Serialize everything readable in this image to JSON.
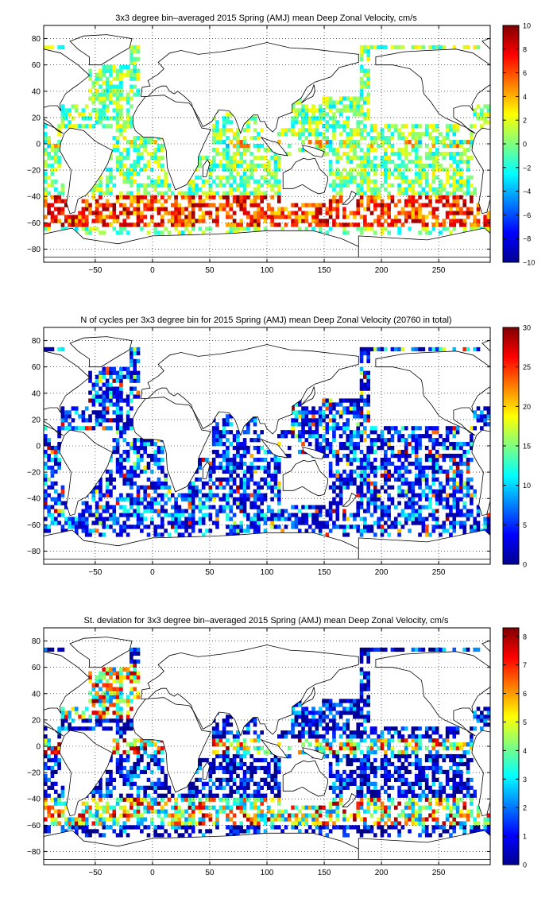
{
  "chart_data": [
    {
      "type": "heatmap",
      "title": "3x3 degree bin–averaged 2015 Spring (AMJ) mean Deep Zonal Velocity, cm/s",
      "xlabel": "",
      "ylabel": "",
      "xlim": [
        -95,
        295
      ],
      "ylim": [
        -90,
        90
      ],
      "xticks": [
        -50,
        0,
        50,
        100,
        150,
        200,
        250
      ],
      "yticks": [
        -80,
        -60,
        -40,
        -20,
        0,
        20,
        40,
        60,
        80
      ],
      "grid": true,
      "bin_size_deg": 3,
      "colormap": "jet",
      "colorbar": {
        "min": -10,
        "max": 10,
        "ticks": [
          -10,
          -8,
          -6,
          -4,
          -2,
          0,
          2,
          4,
          6,
          8,
          10
        ]
      }
    },
    {
      "type": "heatmap",
      "title": "N of cycles per 3x3 degree bin for 2015 Spring (AMJ) mean Deep Zonal Velocity (20760 in total)",
      "xlabel": "",
      "ylabel": "",
      "xlim": [
        -95,
        295
      ],
      "ylim": [
        -90,
        90
      ],
      "xticks": [
        -50,
        0,
        50,
        100,
        150,
        200,
        250
      ],
      "yticks": [
        -80,
        -60,
        -40,
        -20,
        0,
        20,
        40,
        60,
        80
      ],
      "grid": true,
      "bin_size_deg": 3,
      "colormap": "jet",
      "colorbar": {
        "min": 0,
        "max": 30,
        "ticks": [
          0,
          5,
          10,
          15,
          20,
          25,
          30
        ]
      }
    },
    {
      "type": "heatmap",
      "title": "St. deviation for 3x3 degree bin–averaged 2015 Spring (AMJ) mean Deep Zonal Velocity, cm/s",
      "xlabel": "",
      "ylabel": "",
      "xlim": [
        -95,
        295
      ],
      "ylim": [
        -90,
        90
      ],
      "xticks": [
        -50,
        0,
        50,
        100,
        150,
        200,
        250
      ],
      "yticks": [
        -80,
        -60,
        -40,
        -20,
        0,
        20,
        40,
        60,
        80
      ],
      "grid": true,
      "bin_size_deg": 3,
      "colormap": "jet",
      "colorbar": {
        "min": 0,
        "max": 8.3,
        "ticks": [
          0,
          1,
          2,
          3,
          4,
          5,
          6,
          7,
          8
        ]
      }
    }
  ],
  "colors": {
    "background": "#ffffff",
    "axes": "#000000",
    "land_outline": "#000000",
    "colormap_stops": [
      "#00008f",
      "#0000ff",
      "#00ffff",
      "#ffff00",
      "#ff0000",
      "#800000"
    ]
  }
}
